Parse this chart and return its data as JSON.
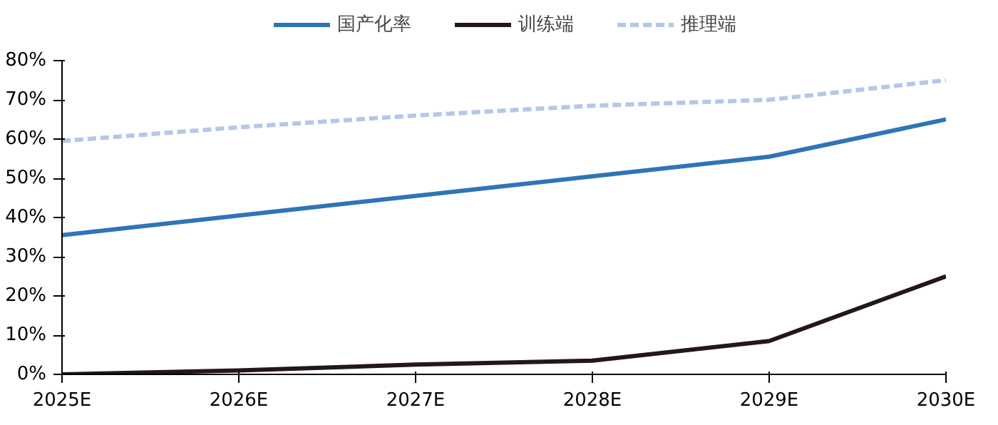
{
  "chart_data": {
    "type": "line",
    "categories": [
      "2025E",
      "2026E",
      "2027E",
      "2028E",
      "2029E",
      "2030E"
    ],
    "ylim": [
      0,
      80
    ],
    "yticks": [
      {
        "value": 0,
        "label": "0%"
      },
      {
        "value": 10,
        "label": "10%"
      },
      {
        "value": 20,
        "label": "20%"
      },
      {
        "value": 30,
        "label": "30%"
      },
      {
        "value": 40,
        "label": "40%"
      },
      {
        "value": 50,
        "label": "50%"
      },
      {
        "value": 60,
        "label": "60%"
      },
      {
        "value": 70,
        "label": "70%"
      },
      {
        "value": 80,
        "label": "80%"
      }
    ],
    "grid": false,
    "legend": "top",
    "marker": "none",
    "series": [
      {
        "name": "国产化率",
        "color": "#2e75b6",
        "line_style": "solid",
        "values": [
          35.5,
          40.5,
          45.5,
          50.5,
          55.5,
          65
        ]
      },
      {
        "name": "训练端",
        "color": "#231815",
        "line_style": "solid",
        "values": [
          0,
          1,
          2.5,
          3.5,
          8.5,
          25
        ]
      },
      {
        "name": "推理端",
        "color": "#b4c7e7",
        "line_style": "dashed",
        "values": [
          59.5,
          63,
          66,
          68.5,
          70,
          75
        ]
      }
    ]
  }
}
